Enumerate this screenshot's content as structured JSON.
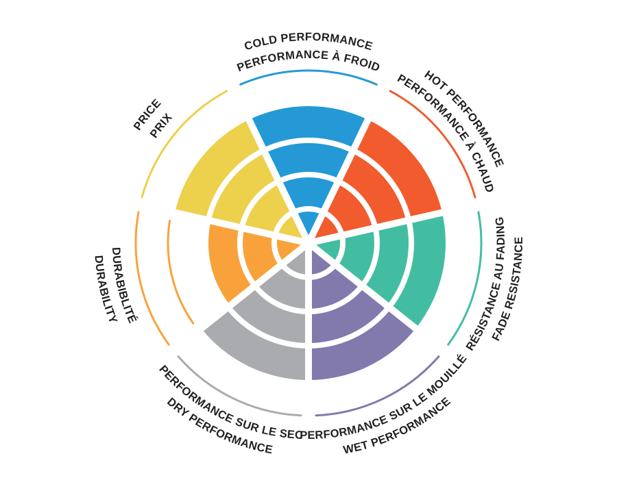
{
  "page": {
    "background": "#FFFFFF",
    "text_color": "#231F20"
  },
  "chart_data": {
    "type": "pie",
    "variant": "segmented-radial-rating-wheel",
    "title": "",
    "rings_total": 4,
    "direction": "clockwise",
    "start_at": "top",
    "grid": "white concentric ring separators and white radial sector gaps",
    "legend_position": "curved radial labels (English outer line, French inner line)",
    "categories": [
      {
        "id": "cold",
        "label_en": "COLD PERFORMANCE",
        "label_fr": "PERFORMANCE À FROID",
        "value": 4,
        "color": "#2499D6"
      },
      {
        "id": "hot",
        "label_en": "HOT PERFORMANCE",
        "label_fr": "PERFORMANCE À CHAUD",
        "value": 4,
        "color": "#F15B2E"
      },
      {
        "id": "fade",
        "label_en": "FADE RESISTANCE",
        "label_fr": "RÉSISTANCE AU FADING",
        "value": 4,
        "color": "#43BDA1"
      },
      {
        "id": "wet",
        "label_en": "WET PERFORMANCE",
        "label_fr": "PERFORMANCE SUR LE MOUILLÉ",
        "value": 4,
        "color": "#8279AD"
      },
      {
        "id": "dry",
        "label_en": "DRY PERFORMANCE",
        "label_fr": "PERFORMANCE SUR LE SEC",
        "value": 4,
        "color": "#A9ABAE"
      },
      {
        "id": "durability",
        "label_en": "DURABILITY",
        "label_fr": "DURABIBLITÉ",
        "value": 3,
        "color": "#F9A23C"
      },
      {
        "id": "price",
        "label_en": "PRICE",
        "label_fr": "PRIX",
        "value": 4,
        "color": "#EDD04C"
      }
    ],
    "separator_color": "#FFFFFF",
    "outer_accent_arcs": "thin arc in category color outside the wheel for every category",
    "unreached_level_arc": "categories below max show a thin arc of their color at the missing ring level"
  }
}
